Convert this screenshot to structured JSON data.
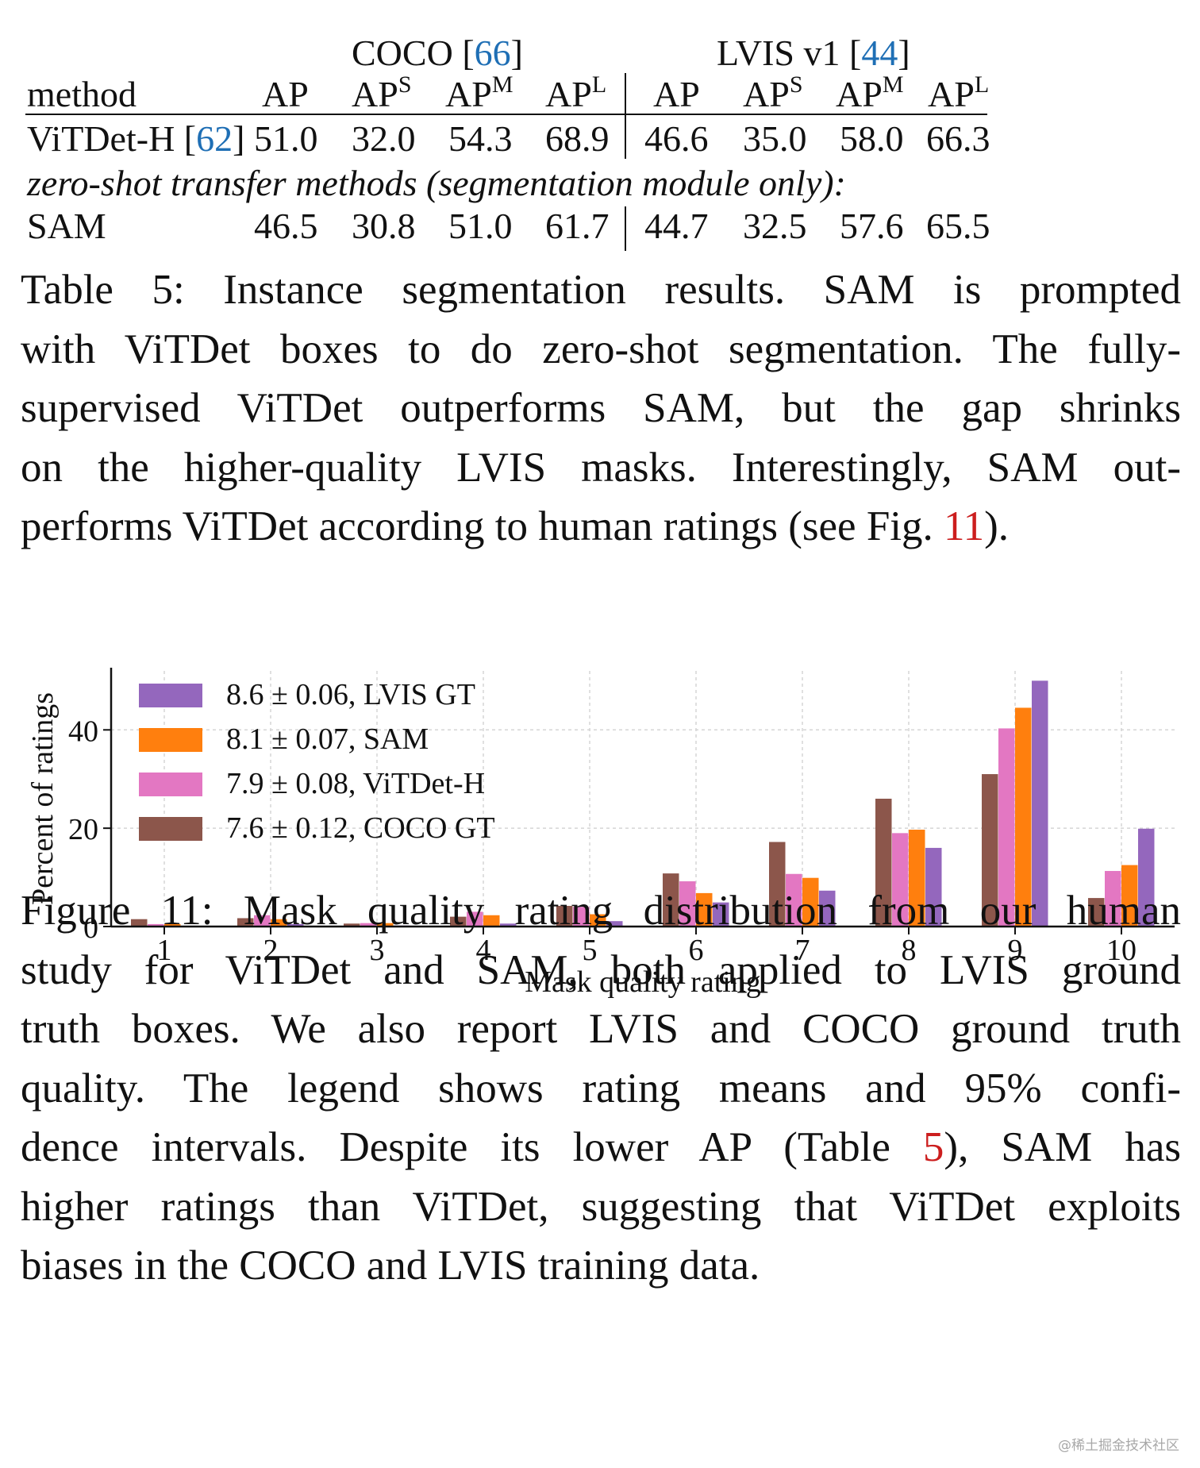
{
  "table": {
    "group_headers": {
      "coco": {
        "name": "COCO",
        "ref": "66"
      },
      "lvis": {
        "name": "LVIS v1",
        "ref": "44"
      }
    },
    "columns": {
      "method": "method",
      "ap": "AP",
      "aps_base": "AP",
      "aps_sup": "S",
      "apm_base": "AP",
      "apm_sup": "M",
      "apl_base": "AP",
      "apl_sup": "L"
    },
    "rows": [
      {
        "method": "ViTDet-H",
        "ref": "62",
        "coco": [
          "51.0",
          "32.0",
          "54.3",
          "68.9"
        ],
        "lvis": [
          "46.6",
          "35.0",
          "58.0",
          "66.3"
        ]
      },
      {
        "method": "SAM",
        "ref": "",
        "coco": [
          "46.5",
          "30.8",
          "51.0",
          "61.7"
        ],
        "lvis": [
          "44.7",
          "32.5",
          "57.6",
          "65.5"
        ]
      }
    ],
    "subheader": "zero-shot transfer methods (segmentation module only):"
  },
  "table_caption": {
    "lines": [
      "Table 5: Instance segmentation results. SAM is prompted",
      "with ViTDet boxes to do zero-shot segmentation. The fully-",
      "supervised ViTDet outperforms SAM, but the gap shrinks",
      "on the higher-quality LVIS masks. Interestingly, SAM out-"
    ],
    "last_pre": "performs ViTDet according to human ratings (see Fig. ",
    "last_ref": "11",
    "last_post": ")."
  },
  "chart_data": {
    "type": "bar",
    "xlabel": "Mask quality rating",
    "ylabel": "Percent of ratings",
    "categories": [
      "1",
      "2",
      "3",
      "4",
      "5",
      "6",
      "7",
      "8",
      "9",
      "10"
    ],
    "yticks": [
      "0",
      "20",
      "40"
    ],
    "ylim": [
      0,
      52
    ],
    "grid": true,
    "legend_position": "top-left",
    "series": [
      {
        "name": "7.6 ± 0.12, COCO GT",
        "color": "#8c564b",
        "values": [
          1.5,
          1.7,
          0.6,
          2.0,
          4.2,
          10.8,
          17.2,
          26.0,
          31.0,
          5.8
        ]
      },
      {
        "name": "7.9 ± 0.08, ViTDet-H",
        "color": "#e377c2",
        "values": [
          0.5,
          2.3,
          0.7,
          3.0,
          4.0,
          9.2,
          10.7,
          19.0,
          40.3,
          11.3
        ]
      },
      {
        "name": "8.1 ± 0.07, SAM",
        "color": "#ff7f0e",
        "values": [
          0.5,
          1.5,
          0.7,
          2.3,
          2.5,
          6.8,
          9.9,
          19.7,
          44.5,
          12.5
        ]
      },
      {
        "name": "8.6 ± 0.06, LVIS GT",
        "color": "#9467bd",
        "values": [
          0.1,
          0.5,
          0.2,
          0.6,
          1.1,
          4.9,
          7.3,
          16.0,
          50.0,
          19.9
        ]
      }
    ],
    "legend_order": [
      3,
      2,
      1,
      0
    ]
  },
  "figure_caption": {
    "lines": [
      "Figure 11: Mask quality rating distribution from our human",
      "study for ViTDet and SAM, both applied to LVIS ground",
      "truth boxes. We also report LVIS and COCO ground truth",
      "quality. The legend shows rating means and 95% confi-"
    ],
    "line5_pre": "dence intervals. Despite its lower AP (Table ",
    "line5_ref": "5",
    "line5_post": "), SAM has",
    "line6": "higher ratings than ViTDet, suggesting that ViTDet exploits",
    "line7": "biases in the COCO and LVIS training data."
  },
  "watermark": "@稀土掘金技术社区"
}
